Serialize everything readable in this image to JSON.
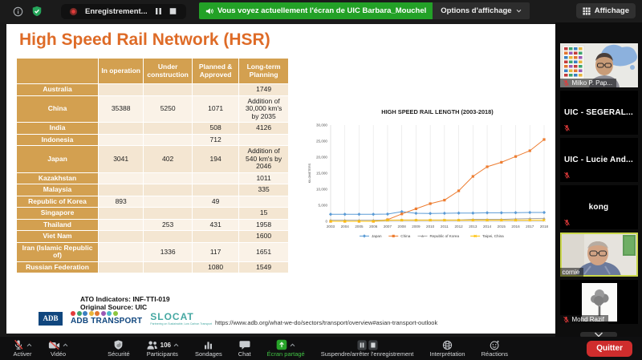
{
  "top_bar": {
    "recording_label": "Enregistrement...",
    "banner_text": "Vous voyez actuellement l'écran de UIC Barbara_Mouchel",
    "display_options_label": "Options d'affichage",
    "view_label": "Affichage"
  },
  "slide": {
    "title": "High Speed Rail Network (HSR)",
    "table": {
      "headers": [
        "",
        "In operation",
        "Under construction",
        "Planned & Approved",
        "Long-term Planning"
      ],
      "rows": [
        [
          "Australia",
          "",
          "",
          "",
          "1749"
        ],
        [
          "China",
          "35388",
          "5250",
          "1071",
          "Addition of 30,000 km's by 2035"
        ],
        [
          "India",
          "",
          "",
          "508",
          "4126"
        ],
        [
          "Indonesia",
          "",
          "",
          "712",
          ""
        ],
        [
          "Japan",
          "3041",
          "402",
          "194",
          "Addition of 540 km's by 2046"
        ],
        [
          "Kazakhstan",
          "",
          "",
          "",
          "1011"
        ],
        [
          "Malaysia",
          "",
          "",
          "",
          "335"
        ],
        [
          "Republic of Korea",
          "893",
          "",
          "49",
          ""
        ],
        [
          "Singapore",
          "",
          "",
          "",
          "15"
        ],
        [
          "Thailand",
          "",
          "253",
          "431",
          "1958"
        ],
        [
          "Viet Nam",
          "",
          "",
          "",
          "1600"
        ],
        [
          "Iran (Islamic Republic of)",
          "",
          "1336",
          "117",
          "1651"
        ],
        [
          "Russian Federation",
          "",
          "",
          "1080",
          "1549"
        ]
      ]
    },
    "footnote1": "ATO Indicators: INF-TTI-019",
    "footnote2": "Original Source: UIC",
    "url": "https://www.adb.org/what-we-do/sectors/transport/overview#asian-transport-outlook",
    "logos": {
      "adb": "ADB",
      "adb_transport": "ADB TRANSPORT",
      "slocat": "SLOCAT",
      "slocat_sub": "Partnering on Sustainable, Low Carbon Transport",
      "dot_colors": [
        "#e23b3b",
        "#3aa46c",
        "#3a7fc1",
        "#e8b53a",
        "#e2762f",
        "#9a59b5",
        "#4ab8c9",
        "#8dc63f"
      ]
    }
  },
  "chart_data": {
    "type": "line",
    "title": "HIGH SPEED RAIL LENGTH (2003-2018)",
    "ylabel": "KILOMETERS",
    "x": [
      2003,
      2004,
      2005,
      2006,
      2007,
      2008,
      2009,
      2010,
      2011,
      2012,
      2013,
      2014,
      2015,
      2016,
      2017,
      2018
    ],
    "ylim": [
      0,
      30000
    ],
    "yticks": [
      0,
      5000,
      10000,
      15000,
      20000,
      25000,
      30000
    ],
    "grid": "vertical",
    "legend_position": "bottom",
    "series": [
      {
        "name": "Japan",
        "color": "#5b9bd5",
        "marker": "diamond",
        "values": [
          2200,
          2200,
          2200,
          2200,
          2250,
          3000,
          2500,
          2450,
          2500,
          2550,
          2550,
          2650,
          2650,
          2700,
          2750,
          2750
        ]
      },
      {
        "name": "China",
        "color": "#ed7d31",
        "marker": "square",
        "values": [
          0,
          0,
          0,
          0,
          500,
          2300,
          3900,
          5500,
          6600,
          9500,
          14000,
          17000,
          18400,
          20200,
          22000,
          25500
        ]
      },
      {
        "name": "Republic of Korea",
        "color": "#a5a5a5",
        "marker": "triangle",
        "values": [
          350,
          350,
          350,
          350,
          350,
          400,
          400,
          400,
          400,
          420,
          580,
          580,
          600,
          750,
          850,
          900
        ]
      },
      {
        "name": "Taipei, China",
        "color": "#ffc000",
        "marker": "x",
        "values": [
          0,
          0,
          0,
          0,
          345,
          345,
          345,
          345,
          345,
          345,
          345,
          345,
          345,
          345,
          350,
          350
        ]
      }
    ]
  },
  "participants_panel": {
    "tiles": [
      {
        "name": "Milko P. Pap...",
        "kind": "video",
        "scene": "flags-map",
        "muted": true,
        "active": false
      },
      {
        "name": "UIC - SEGERAL...",
        "kind": "name",
        "muted": true,
        "active": false
      },
      {
        "name": "UIC - Lucie And...",
        "kind": "name",
        "muted": true,
        "active": false
      },
      {
        "name": "kong",
        "kind": "name",
        "muted": true,
        "active": false
      },
      {
        "name": "cornie",
        "kind": "video",
        "scene": "office",
        "muted": false,
        "active": true
      },
      {
        "name": "Mohd Razif",
        "kind": "avatar",
        "scene": "tree-avatar",
        "muted": true,
        "active": false
      }
    ]
  },
  "toolbar": {
    "items": [
      {
        "id": "microphone",
        "label": "Activer",
        "icon": "mic-muted",
        "caret": true,
        "group": "left"
      },
      {
        "id": "video",
        "label": "Vidéo",
        "icon": "video-muted",
        "caret": true,
        "group": "left"
      },
      {
        "id": "security",
        "label": "Sécurité",
        "icon": "shield",
        "group": "center"
      },
      {
        "id": "participants",
        "label": "Participants",
        "icon": "participants",
        "badge": "106",
        "caret": true,
        "group": "center"
      },
      {
        "id": "polls",
        "label": "Sondages",
        "icon": "poll",
        "group": "center"
      },
      {
        "id": "chat",
        "label": "Chat",
        "icon": "chat",
        "group": "center"
      },
      {
        "id": "share-screen",
        "label": "Écran partagé",
        "icon": "share-screen",
        "caret": true,
        "green": true,
        "group": "center"
      },
      {
        "id": "recording-controls",
        "label": "Suspendre/arrêter l'enregistrement",
        "icon": "pause-stop",
        "group": "center"
      },
      {
        "id": "interpretation",
        "label": "Interprétation",
        "icon": "globe",
        "group": "center"
      },
      {
        "id": "reactions",
        "label": "Réactions",
        "icon": "smiley",
        "group": "center"
      }
    ],
    "participants_count": "106",
    "leave_label": "Quitter"
  },
  "colors": {
    "banner_green": "#23a127",
    "accent_orange": "#de6b27",
    "table_gold": "#d3a050",
    "leave_red": "#cf2d2d",
    "active_border": "#c9d64b",
    "muted_red": "#e23b3b"
  }
}
